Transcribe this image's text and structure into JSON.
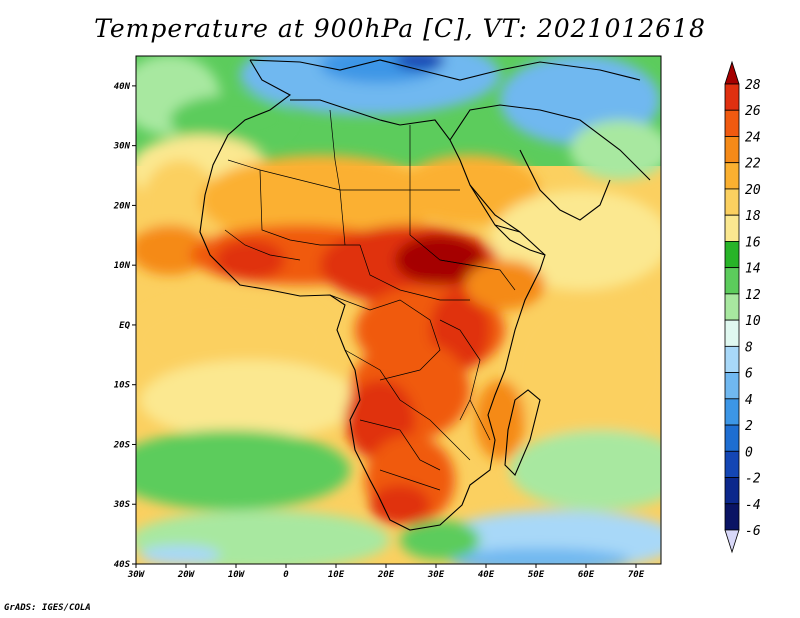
{
  "title": "Temperature at 900hPa [C], VT: 2021012618",
  "footer": "GrADS: IGES/COLA",
  "map": {
    "projection": "latlon",
    "lon_range": [
      -30,
      75
    ],
    "lat_range": [
      -40,
      45
    ],
    "lon_ticks": [
      "30W",
      "20W",
      "10W",
      "0",
      "10E",
      "20E",
      "30E",
      "40E",
      "50E",
      "60E",
      "70E"
    ],
    "lat_ticks": [
      "40S",
      "30S",
      "20S",
      "10S",
      "EQ",
      "10N",
      "20N",
      "30N",
      "40N"
    ]
  },
  "colorbar": {
    "labels": [
      "28",
      "26",
      "24",
      "22",
      "20",
      "18",
      "16",
      "14",
      "12",
      "10",
      "8",
      "6",
      "4",
      "2",
      "0",
      "-2",
      "-4",
      "-6"
    ],
    "colors": [
      "#a50000",
      "#e03010",
      "#f05a10",
      "#f58a18",
      "#fbb030",
      "#fbd060",
      "#fbe890",
      "#28b428",
      "#5ccc5c",
      "#a8e8a0",
      "#e0f8f0",
      "#a8d8f8",
      "#70b8f0",
      "#3c96e6",
      "#1e6ed2",
      "#1446b4",
      "#0c288c",
      "#0a1464",
      "#d8d8f8"
    ]
  }
}
